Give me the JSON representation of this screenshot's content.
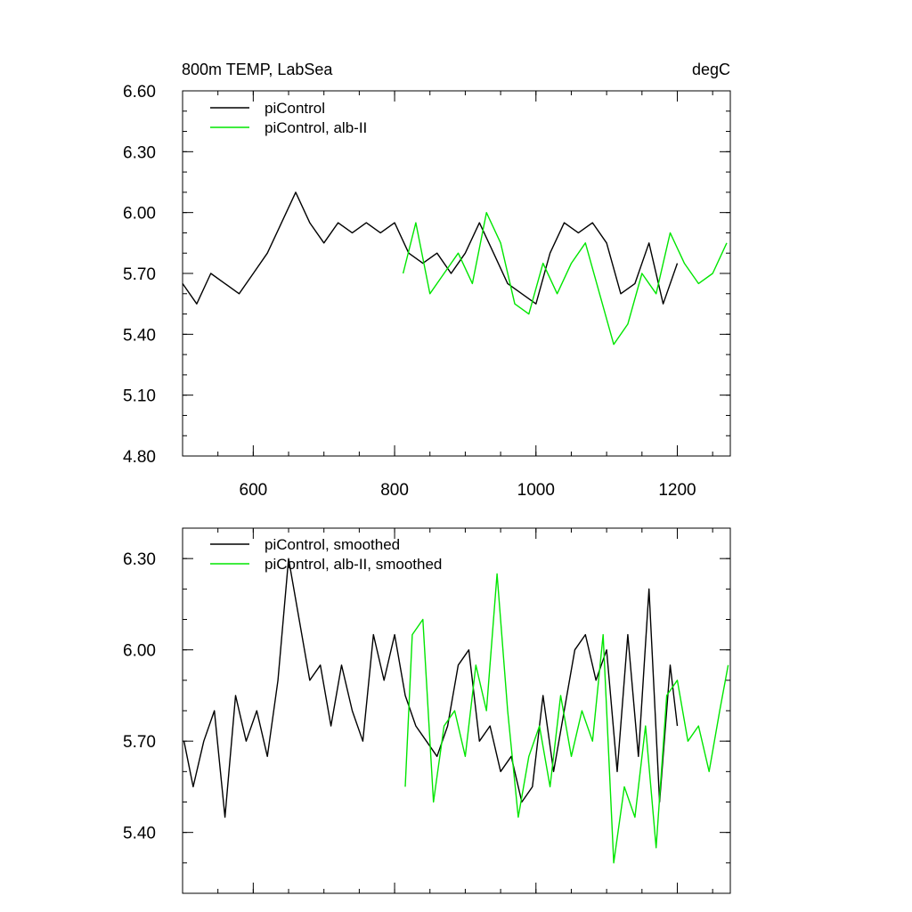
{
  "colors": {
    "series_a": "#000000",
    "series_b": "#00e600",
    "axis": "#000000",
    "background": "#ffffff"
  },
  "panel_top": {
    "title_left": "800m TEMP, LabSea",
    "title_right": "degC",
    "legend": [
      "piControl",
      "piControl, alb-II"
    ]
  },
  "panel_bottom": {
    "legend": [
      "piControl, smoothed",
      "piControl, alb-II, smoothed"
    ]
  },
  "chart_data": [
    {
      "type": "line",
      "title": "800m TEMP, LabSea",
      "units_label": "degC",
      "xlabel": "",
      "ylabel": "",
      "xlim": [
        500,
        1275
      ],
      "ylim": [
        4.8,
        6.6
      ],
      "x_ticks": [
        600,
        800,
        1000,
        1200
      ],
      "y_ticks": [
        4.8,
        5.1,
        5.4,
        5.7,
        6.0,
        6.3,
        6.6
      ],
      "x_tick_labels": [
        "600",
        "800",
        "1000",
        "1200"
      ],
      "y_tick_labels": [
        "4.80",
        "5.10",
        "5.40",
        "5.70",
        "6.00",
        "6.30",
        "6.60"
      ],
      "legend_position": "top-left",
      "grid": false,
      "series": [
        {
          "name": "piControl",
          "color": "#000000",
          "x": [
            500,
            520,
            540,
            560,
            580,
            600,
            620,
            640,
            660,
            680,
            700,
            720,
            740,
            760,
            780,
            800,
            820,
            840,
            860,
            880,
            900,
            920,
            940,
            960,
            980,
            1000,
            1020,
            1040,
            1060,
            1080,
            1100,
            1120,
            1140,
            1160,
            1180,
            1200
          ],
          "y": [
            5.65,
            5.55,
            5.7,
            5.65,
            5.6,
            5.7,
            5.8,
            5.95,
            6.1,
            5.95,
            5.85,
            5.95,
            5.9,
            5.95,
            5.9,
            5.95,
            5.8,
            5.75,
            5.8,
            5.7,
            5.8,
            5.95,
            5.8,
            5.65,
            5.6,
            5.55,
            5.8,
            5.95,
            5.9,
            5.95,
            5.85,
            5.6,
            5.65,
            5.85,
            5.55,
            5.75
          ]
        },
        {
          "name": "piControl, alb-II",
          "color": "#00e600",
          "x": [
            812,
            830,
            850,
            870,
            890,
            910,
            930,
            950,
            970,
            990,
            1010,
            1030,
            1050,
            1070,
            1090,
            1110,
            1130,
            1150,
            1170,
            1190,
            1210,
            1230,
            1250,
            1270
          ],
          "y": [
            5.7,
            5.95,
            5.6,
            5.7,
            5.8,
            5.65,
            6.0,
            5.85,
            5.55,
            5.5,
            5.75,
            5.6,
            5.75,
            5.85,
            5.6,
            5.35,
            5.45,
            5.7,
            5.6,
            5.9,
            5.75,
            5.65,
            5.7,
            5.85
          ]
        }
      ]
    },
    {
      "type": "line",
      "title": "",
      "xlabel": "",
      "ylabel": "",
      "xlim": [
        500,
        1275
      ],
      "ylim": [
        5.2,
        6.4
      ],
      "x_ticks": [
        600,
        800,
        1000,
        1200
      ],
      "y_ticks": [
        5.4,
        5.7,
        6.0,
        6.3
      ],
      "x_tick_labels": [],
      "y_tick_labels": [
        "5.40",
        "5.70",
        "6.00",
        "6.30"
      ],
      "legend_position": "top-left",
      "grid": false,
      "series": [
        {
          "name": "piControl, smoothed",
          "color": "#000000",
          "x": [
            502,
            515,
            530,
            545,
            560,
            575,
            590,
            605,
            620,
            635,
            650,
            665,
            680,
            695,
            710,
            725,
            740,
            755,
            770,
            785,
            800,
            815,
            830,
            845,
            860,
            875,
            890,
            905,
            920,
            935,
            950,
            965,
            980,
            995,
            1010,
            1025,
            1040,
            1055,
            1070,
            1085,
            1100,
            1115,
            1130,
            1145,
            1160,
            1175,
            1190,
            1200
          ],
          "y": [
            5.7,
            5.55,
            5.7,
            5.8,
            5.45,
            5.85,
            5.7,
            5.8,
            5.65,
            5.9,
            6.3,
            6.1,
            5.9,
            5.95,
            5.75,
            5.95,
            5.8,
            5.7,
            6.05,
            5.9,
            6.05,
            5.85,
            5.75,
            5.7,
            5.65,
            5.75,
            5.95,
            6.0,
            5.7,
            5.75,
            5.6,
            5.65,
            5.5,
            5.55,
            5.85,
            5.6,
            5.8,
            6.0,
            6.05,
            5.9,
            6.0,
            5.6,
            6.05,
            5.65,
            6.2,
            5.5,
            5.95,
            5.75
          ]
        },
        {
          "name": "piControl, alb-II, smoothed",
          "color": "#00e600",
          "x": [
            815,
            825,
            840,
            855,
            870,
            885,
            900,
            915,
            930,
            945,
            960,
            975,
            990,
            1005,
            1020,
            1035,
            1050,
            1065,
            1080,
            1095,
            1110,
            1125,
            1140,
            1155,
            1170,
            1185,
            1200,
            1215,
            1230,
            1245,
            1260,
            1272
          ],
          "y": [
            5.55,
            6.05,
            6.1,
            5.5,
            5.75,
            5.8,
            5.65,
            5.95,
            5.8,
            6.25,
            5.8,
            5.45,
            5.65,
            5.75,
            5.55,
            5.85,
            5.65,
            5.8,
            5.7,
            6.05,
            5.3,
            5.55,
            5.45,
            5.75,
            5.35,
            5.85,
            5.9,
            5.7,
            5.75,
            5.6,
            5.8,
            5.95
          ]
        }
      ]
    }
  ]
}
